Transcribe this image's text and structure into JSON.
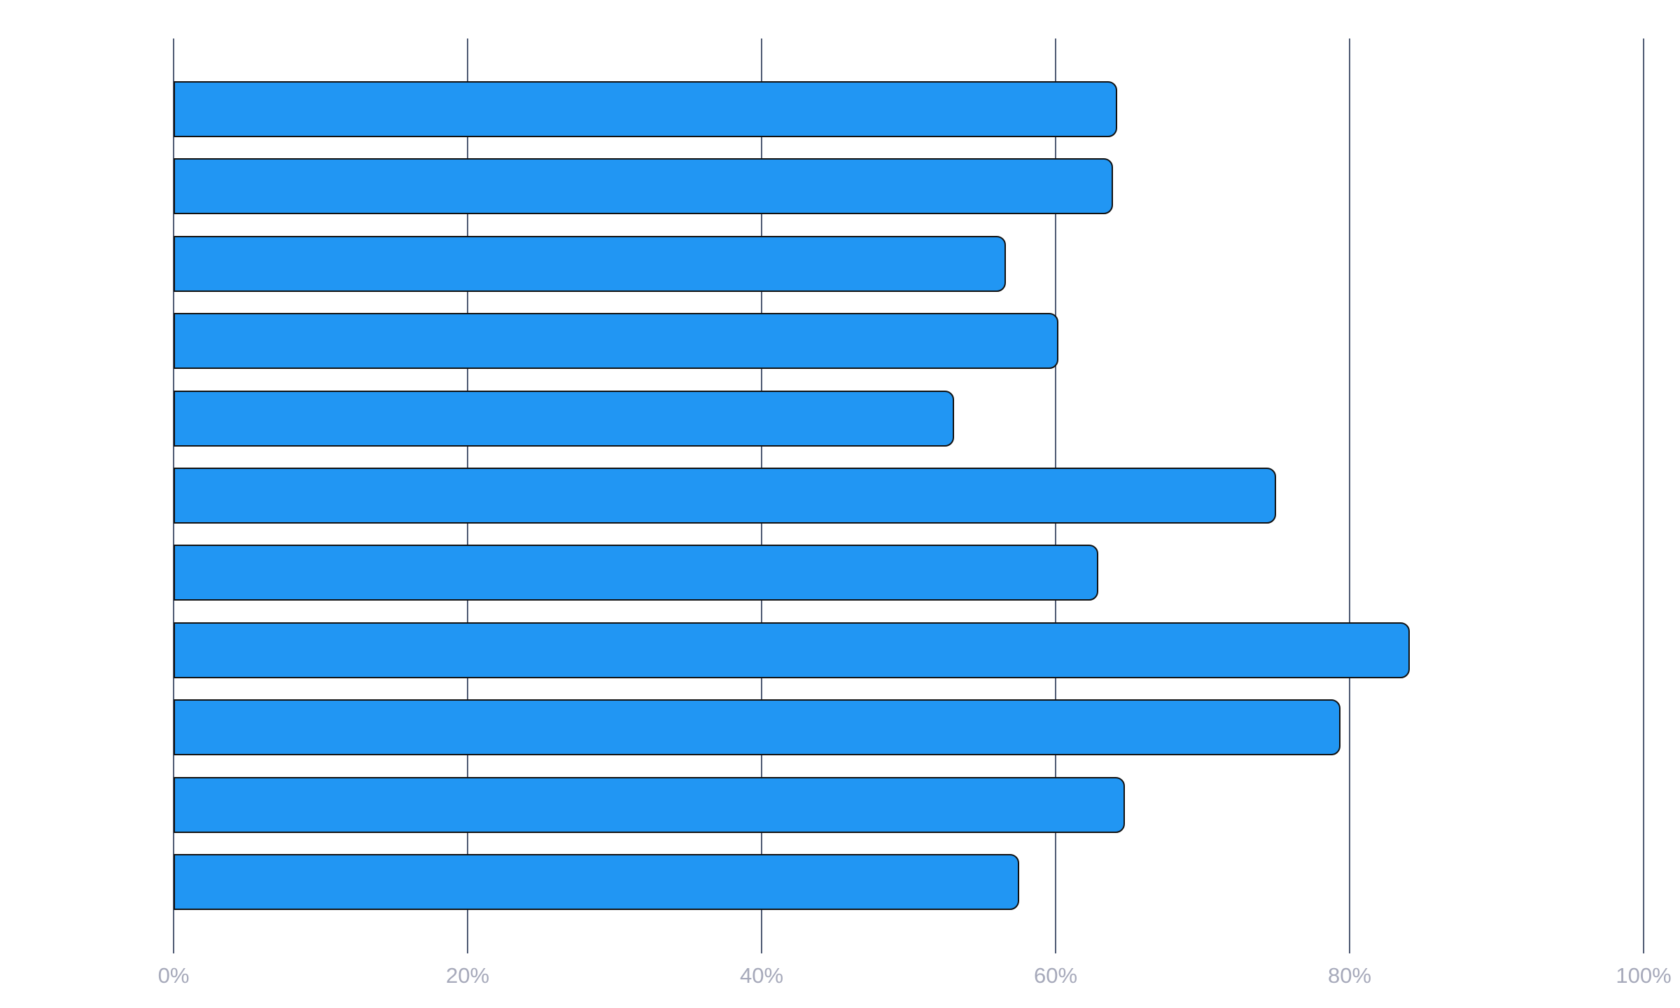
{
  "chart_data": {
    "type": "bar",
    "orientation": "horizontal",
    "title": "",
    "xlabel": "",
    "ylabel": "",
    "xlim": [
      0,
      100
    ],
    "x_tick_values": [
      0,
      20,
      40,
      60,
      80,
      100
    ],
    "x_tick_labels": [
      "0%",
      "20%",
      "40%",
      "60%",
      "80%",
      "100%"
    ],
    "grid": true,
    "legend": false,
    "category_labels_visible": false,
    "values_unit": "percent",
    "values": [
      64.2,
      63.9,
      56.6,
      60.2,
      53.1,
      75.0,
      62.9,
      84.1,
      79.4,
      64.7,
      57.5
    ],
    "colors": {
      "bar_fill": "#2196f3",
      "bar_border": "#111111",
      "gridline": "#4e5a73",
      "tick_label": "#a6a9ba",
      "background": "#ffffff"
    }
  }
}
